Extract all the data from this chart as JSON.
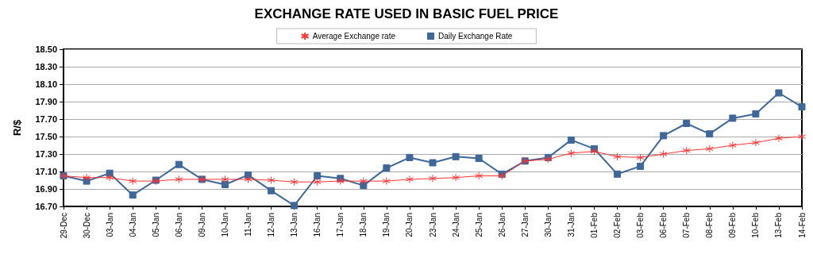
{
  "chart_data": {
    "type": "line",
    "title": "EXCHANGE RATE USED IN BASIC FUEL PRICE",
    "ylabel": "R/$",
    "categories": [
      "29-Dec",
      "30-Dec",
      "03-Jan",
      "04-Jan",
      "05-Jan",
      "06-Jan",
      "09-Jan",
      "10-Jan",
      "11-Jan",
      "12-Jan",
      "13-Jan",
      "16-Jan",
      "17-Jan",
      "18-Jan",
      "19-Jan",
      "20-Jan",
      "23-Jan",
      "24-Jan",
      "25-Jan",
      "26-Jan",
      "27-Jan",
      "30-Jan",
      "31-Jan",
      "01-Feb",
      "02-Feb",
      "03-Feb",
      "06-Feb",
      "07-Feb",
      "08-Feb",
      "09-Feb",
      "10-Feb",
      "13-Feb",
      "14-Feb"
    ],
    "series": [
      {
        "name": "Average Exchange rate",
        "color": "#ff3333",
        "marker": "cross",
        "values": [
          17.05,
          17.03,
          17.03,
          16.99,
          16.99,
          17.01,
          17.01,
          17.01,
          17.01,
          17.0,
          16.98,
          16.98,
          16.99,
          16.99,
          16.99,
          17.01,
          17.02,
          17.03,
          17.05,
          17.05,
          17.22,
          17.24,
          17.31,
          17.33,
          17.27,
          17.26,
          17.3,
          17.34,
          17.36,
          17.4,
          17.43,
          17.48,
          17.5
        ]
      },
      {
        "name": "Daily Exchange Rate",
        "color": "#3f6797",
        "marker": "square",
        "values": [
          17.05,
          16.99,
          17.08,
          16.83,
          17.0,
          17.18,
          17.01,
          16.95,
          17.06,
          16.88,
          16.71,
          17.05,
          17.02,
          16.94,
          17.14,
          17.26,
          17.2,
          17.27,
          17.25,
          17.07,
          17.22,
          17.26,
          17.46,
          17.36,
          17.07,
          17.16,
          17.51,
          17.65,
          17.53,
          17.71,
          17.76,
          18.0,
          17.84
        ]
      }
    ],
    "ylim": [
      16.7,
      18.5
    ],
    "yticks": [
      {
        "value": 16.7,
        "label": "16.70"
      },
      {
        "value": 16.9,
        "label": "16.90"
      },
      {
        "value": 17.1,
        "label": "17.10"
      },
      {
        "value": 17.3,
        "label": "17.30"
      },
      {
        "value": 17.5,
        "label": "17.50"
      },
      {
        "value": 17.7,
        "label": "17.70"
      },
      {
        "value": 17.9,
        "label": "17.90"
      },
      {
        "value": 18.1,
        "label": "18.10"
      },
      {
        "value": 18.3,
        "label": "18.30"
      },
      {
        "value": 18.5,
        "label": "18.50"
      }
    ],
    "grid": "y",
    "legend": "top",
    "line_style": "solid"
  }
}
